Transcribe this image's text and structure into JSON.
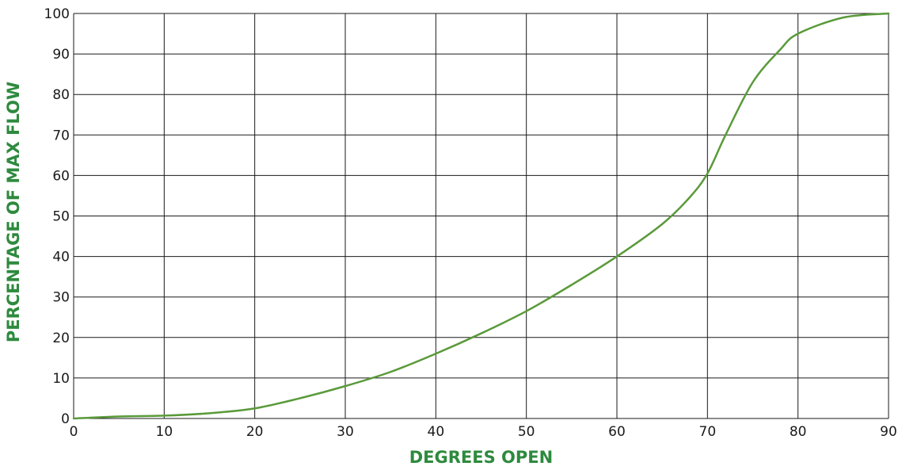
{
  "chart_data": {
    "type": "line",
    "xlabel": "DEGREES OPEN",
    "ylabel": "PERCENTAGE OF MAX FLOW",
    "xlim": [
      0,
      90
    ],
    "ylim": [
      0,
      100
    ],
    "x_ticks": [
      "0",
      "10",
      "20",
      "30",
      "40",
      "50",
      "60",
      "70",
      "80",
      "90"
    ],
    "y_ticks": [
      "0",
      "10",
      "20",
      "30",
      "40",
      "50",
      "60",
      "70",
      "80",
      "90",
      "100"
    ],
    "grid": true,
    "colors": {
      "line": "#5a9a3a",
      "axis_title": "#2e8a3e",
      "grid": "#1a1a1a"
    },
    "series": [
      {
        "x": [
          0,
          5,
          10,
          15,
          20,
          25,
          30,
          35,
          40,
          45,
          50,
          55,
          60,
          65,
          68,
          70,
          72,
          75,
          78,
          80,
          85,
          90
        ],
        "y": [
          0,
          0.5,
          0.7,
          1.3,
          2.5,
          5,
          8,
          11.5,
          16,
          21,
          26.5,
          33,
          40,
          48,
          54.5,
          60.5,
          70,
          83,
          91,
          95,
          99,
          100
        ]
      }
    ]
  }
}
